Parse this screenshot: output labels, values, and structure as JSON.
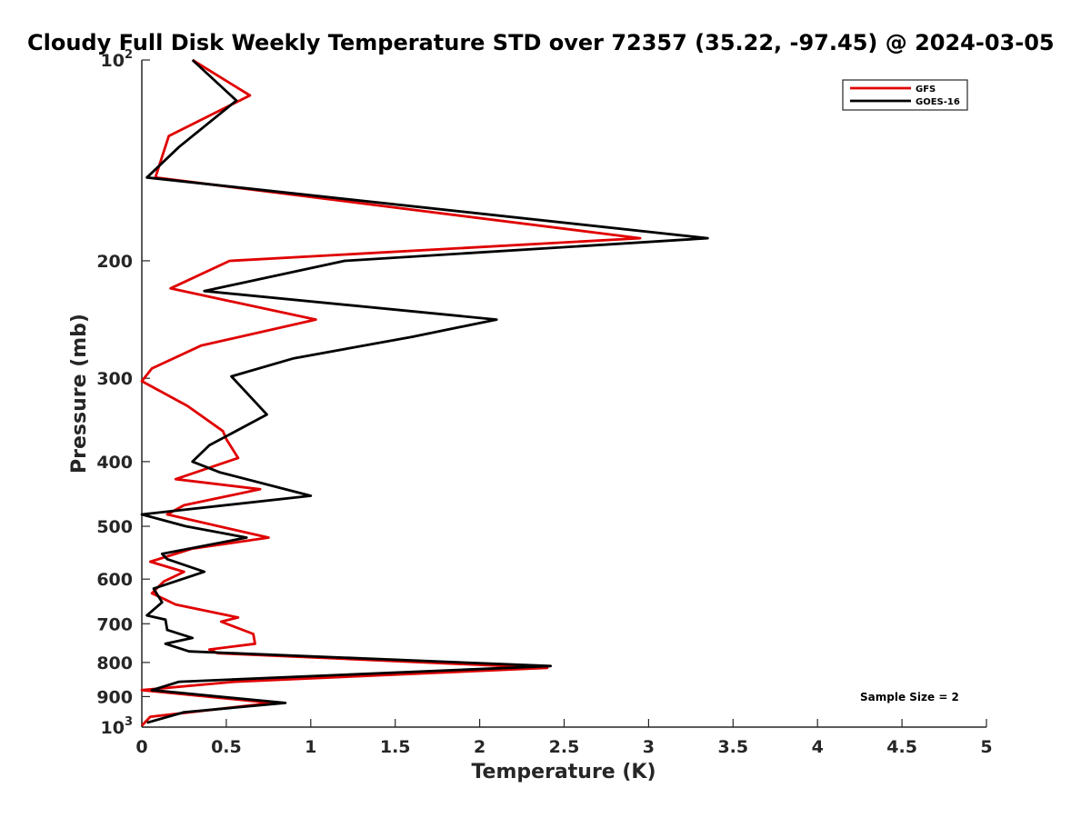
{
  "chart_data": {
    "type": "line",
    "title": "Cloudy Full Disk Weekly Temperature STD over 72357 (35.22, -97.45) @ 2024-03-05",
    "xlabel": "Temperature (K)",
    "ylabel": "Pressure (mb)",
    "xlim": [
      0,
      5
    ],
    "ylim": [
      100,
      1000
    ],
    "y_scale": "log",
    "y_reversed": true,
    "x_ticks": [
      {
        "value": 0,
        "label": "0"
      },
      {
        "value": 0.5,
        "label": "0.5"
      },
      {
        "value": 1,
        "label": "1"
      },
      {
        "value": 1.5,
        "label": "1.5"
      },
      {
        "value": 2,
        "label": "2"
      },
      {
        "value": 2.5,
        "label": "2.5"
      },
      {
        "value": 3,
        "label": "3"
      },
      {
        "value": 3.5,
        "label": "3.5"
      },
      {
        "value": 4,
        "label": "4"
      },
      {
        "value": 4.5,
        "label": "4.5"
      },
      {
        "value": 5,
        "label": "5"
      }
    ],
    "y_ticks": [
      {
        "value": 100,
        "label": "10",
        "sup": "2"
      },
      {
        "value": 200,
        "label": "200"
      },
      {
        "value": 300,
        "label": "300"
      },
      {
        "value": 400,
        "label": "400"
      },
      {
        "value": 500,
        "label": "500"
      },
      {
        "value": 600,
        "label": "600"
      },
      {
        "value": 700,
        "label": "700"
      },
      {
        "value": 800,
        "label": "800"
      },
      {
        "value": 900,
        "label": "900"
      },
      {
        "value": 1000,
        "label": "10",
        "sup": "3"
      }
    ],
    "grid": false,
    "legend_position": "top-right",
    "annotation": "Sample Size = 2",
    "series": [
      {
        "name": "GFS",
        "color": "#e00000",
        "points": [
          [
            0.3,
            100
          ],
          [
            0.64,
            113
          ],
          [
            0.16,
            130
          ],
          [
            0.08,
            150
          ],
          [
            2.95,
            185
          ],
          [
            0.52,
            200
          ],
          [
            0.17,
            220
          ],
          [
            1.03,
            245
          ],
          [
            0.35,
            268
          ],
          [
            0.06,
            290
          ],
          [
            0.0,
            303
          ],
          [
            0.27,
            330
          ],
          [
            0.48,
            360
          ],
          [
            0.5,
            370
          ],
          [
            0.57,
            395
          ],
          [
            0.2,
            425
          ],
          [
            0.7,
            440
          ],
          [
            0.25,
            465
          ],
          [
            0.15,
            480
          ],
          [
            0.75,
            520
          ],
          [
            0.3,
            540
          ],
          [
            0.05,
            565
          ],
          [
            0.25,
            585
          ],
          [
            0.13,
            605
          ],
          [
            0.06,
            630
          ],
          [
            0.2,
            655
          ],
          [
            0.57,
            685
          ],
          [
            0.47,
            695
          ],
          [
            0.66,
            725
          ],
          [
            0.67,
            750
          ],
          [
            0.4,
            765
          ],
          [
            0.45,
            775
          ],
          [
            2.4,
            815
          ],
          [
            0.55,
            855
          ],
          [
            0.0,
            880
          ],
          [
            0.77,
            920
          ],
          [
            0.05,
            965
          ],
          [
            0.0,
            995
          ]
        ]
      },
      {
        "name": "GOES-16",
        "color": "#000000",
        "points": [
          [
            0.3,
            100
          ],
          [
            0.56,
            115
          ],
          [
            0.22,
            135
          ],
          [
            0.03,
            150
          ],
          [
            3.35,
            185
          ],
          [
            1.2,
            200
          ],
          [
            0.37,
            222
          ],
          [
            2.1,
            245
          ],
          [
            1.6,
            260
          ],
          [
            0.9,
            280
          ],
          [
            0.53,
            298
          ],
          [
            0.74,
            340
          ],
          [
            0.4,
            378
          ],
          [
            0.3,
            400
          ],
          [
            0.46,
            415
          ],
          [
            1.0,
            450
          ],
          [
            0.0,
            480
          ],
          [
            0.26,
            500
          ],
          [
            0.62,
            520
          ],
          [
            0.12,
            550
          ],
          [
            0.15,
            560
          ],
          [
            0.37,
            585
          ],
          [
            0.07,
            620
          ],
          [
            0.12,
            650
          ],
          [
            0.03,
            680
          ],
          [
            0.14,
            690
          ],
          [
            0.15,
            715
          ],
          [
            0.3,
            735
          ],
          [
            0.14,
            750
          ],
          [
            0.28,
            770
          ],
          [
            2.42,
            810
          ],
          [
            0.22,
            855
          ],
          [
            0.06,
            880
          ],
          [
            0.85,
            920
          ],
          [
            0.25,
            950
          ],
          [
            0.03,
            985
          ]
        ]
      }
    ]
  }
}
